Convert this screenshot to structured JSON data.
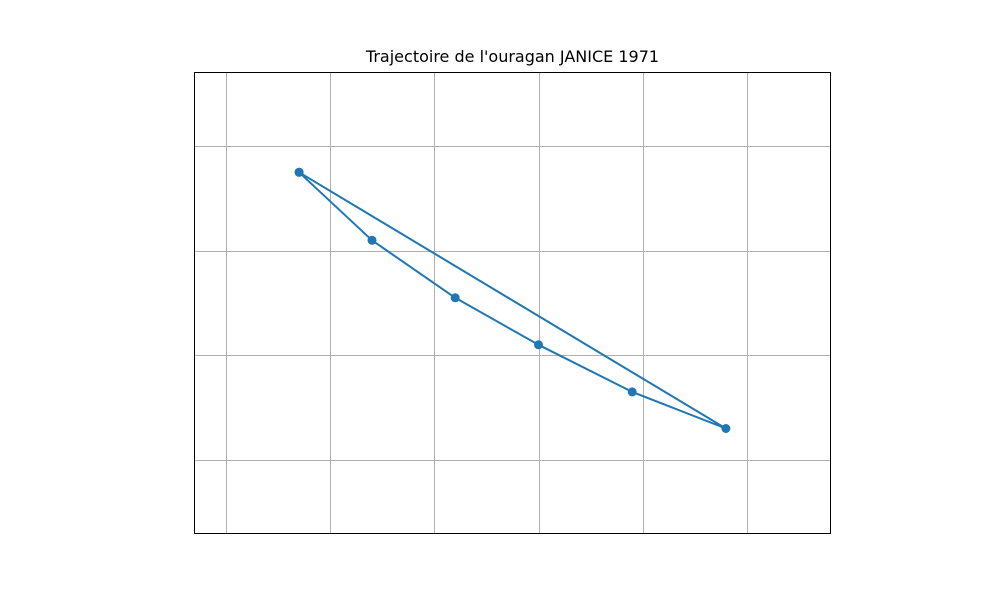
{
  "chart_data": {
    "type": "line",
    "title": "Trajectoire de l'ouragan JANICE 1971",
    "xlabel": "",
    "ylabel": "",
    "xlim": [
      -0.3,
      5.8
    ],
    "ylim": [
      -0.7,
      3.7
    ],
    "x_gridlines": [
      0,
      1,
      2,
      3,
      4,
      5
    ],
    "y_gridlines": [
      0,
      1,
      2,
      3
    ],
    "grid": true,
    "ticks_visible": false,
    "series": [
      {
        "color": "#1f77b4",
        "marker": "circle",
        "x": [
          0.7,
          1.4,
          2.2,
          3.0,
          3.9,
          4.8,
          0.7
        ],
        "y": [
          2.75,
          2.1,
          1.55,
          1.1,
          0.65,
          0.3,
          2.75
        ]
      }
    ]
  }
}
